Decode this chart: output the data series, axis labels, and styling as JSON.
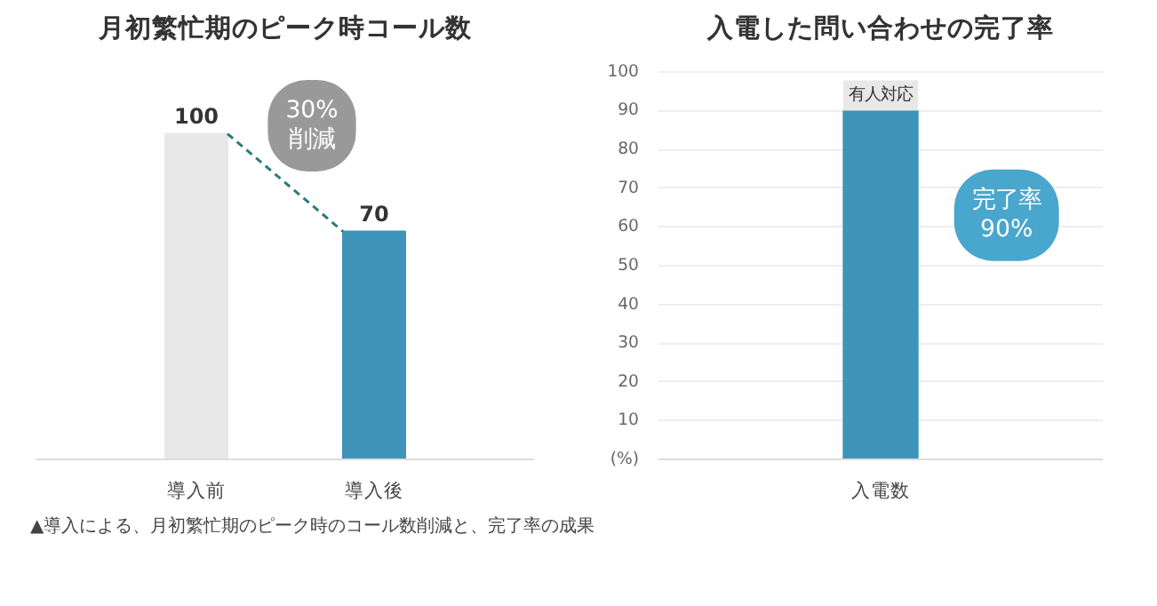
{
  "chart_data": [
    {
      "type": "bar",
      "title": "月初繁忙期のピーク時コール数",
      "categories": [
        "導入前",
        "導入後"
      ],
      "values": [
        100,
        70
      ],
      "colors": [
        "#e8e8e8",
        "#3d94b8"
      ],
      "data_labels": true,
      "grid": false,
      "annotations": [
        "30%\n削減"
      ]
    },
    {
      "type": "bar",
      "title": "入電した問い合わせの完了率",
      "categories": [
        "入電数"
      ],
      "values": [
        90
      ],
      "colors": [
        "#3d94b8"
      ],
      "ylim": [
        0,
        100
      ],
      "yticks": [
        {
          "value": 0,
          "label": "(%)"
        },
        10,
        20,
        30,
        40,
        50,
        60,
        70,
        80,
        90,
        100
      ],
      "grid": "y",
      "annotations": [
        {
          "text": "有人対応",
          "x": "入電数",
          "y": 90
        },
        "完了率\n90%",
        "▲導入による、月初繁忙期のピーク時のコール数削減と、完了率の成果"
      ]
    }
  ]
}
